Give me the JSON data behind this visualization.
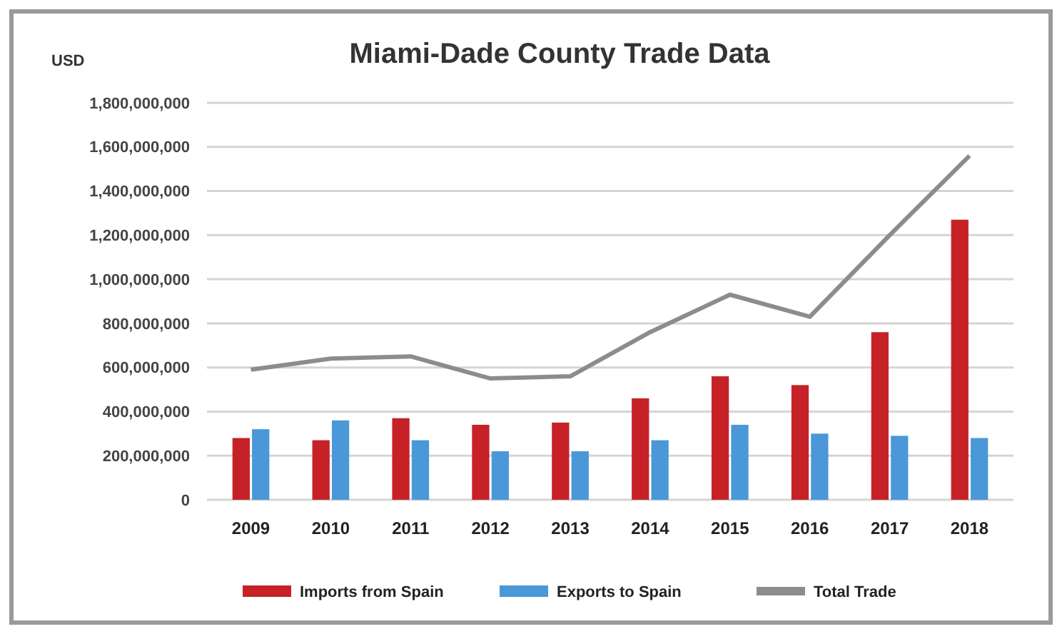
{
  "chart_data": {
    "type": "bar",
    "title": "Miami-Dade County Trade Data",
    "ylabel": "USD",
    "categories": [
      "2009",
      "2010",
      "2011",
      "2012",
      "2013",
      "2014",
      "2015",
      "2016",
      "2017",
      "2018"
    ],
    "series": [
      {
        "name": "Imports from Spain",
        "color": "#c62127",
        "values": [
          280000000,
          270000000,
          370000000,
          340000000,
          350000000,
          460000000,
          560000000,
          520000000,
          760000000,
          1270000000
        ]
      },
      {
        "name": "Exports to Spain",
        "color": "#4a98d8",
        "values": [
          320000000,
          360000000,
          270000000,
          220000000,
          220000000,
          270000000,
          340000000,
          300000000,
          290000000,
          280000000
        ]
      },
      {
        "name": "Total Trade",
        "type": "line",
        "color": "#8c8c8c",
        "values": [
          590000000,
          640000000,
          650000000,
          550000000,
          560000000,
          760000000,
          930000000,
          830000000,
          1200000000,
          1560000000
        ]
      }
    ],
    "ylim": [
      0,
      1800000000
    ],
    "yticks": [
      {
        "value": 0,
        "label": "0"
      },
      {
        "value": 200000000,
        "label": "200,000,000"
      },
      {
        "value": 400000000,
        "label": "400,000,000"
      },
      {
        "value": 600000000,
        "label": "600,000,000"
      },
      {
        "value": 800000000,
        "label": "800,000,000"
      },
      {
        "value": 1000000000,
        "label": "1,000,000,000"
      },
      {
        "value": 1200000000,
        "label": "1,200,000,000"
      },
      {
        "value": 1400000000,
        "label": "1,400,000,000"
      },
      {
        "value": 1600000000,
        "label": "1,600,000,000"
      },
      {
        "value": 1800000000,
        "label": "1,800,000,000"
      }
    ],
    "grid": "y",
    "legend": "bottom",
    "marker": "none",
    "line_style": "solid"
  }
}
